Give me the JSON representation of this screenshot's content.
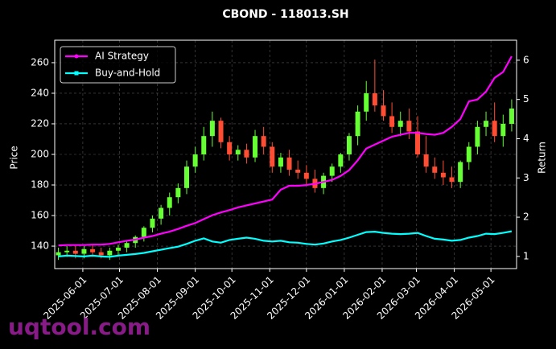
{
  "chart_data": {
    "type": "candlestick",
    "title": "CBOND - 118013.SH",
    "y_label": "Price",
    "y2_label": "Return",
    "watermark": "uqtool.com",
    "x": [
      "2025-05-12",
      "2025-05-19",
      "2025-05-26",
      "2025-06-02",
      "2025-06-09",
      "2025-06-16",
      "2025-06-23",
      "2025-06-30",
      "2025-07-07",
      "2025-07-14",
      "2025-07-21",
      "2025-07-28",
      "2025-08-04",
      "2025-08-11",
      "2025-08-18",
      "2025-08-25",
      "2025-09-01",
      "2025-09-08",
      "2025-09-15",
      "2025-09-22",
      "2025-09-29",
      "2025-10-06",
      "2025-10-13",
      "2025-10-20",
      "2025-10-27",
      "2025-11-03",
      "2025-11-10",
      "2025-11-17",
      "2025-11-24",
      "2025-12-01",
      "2025-12-08",
      "2025-12-15",
      "2025-12-22",
      "2025-12-29",
      "2026-01-05",
      "2026-01-12",
      "2026-01-19",
      "2026-01-26",
      "2026-02-02",
      "2026-02-09",
      "2026-02-16",
      "2026-02-23",
      "2026-03-02",
      "2026-03-09",
      "2026-03-16",
      "2026-03-23",
      "2026-03-30",
      "2026-04-06",
      "2026-04-13",
      "2026-04-20",
      "2026-04-27",
      "2026-05-04",
      "2026-05-11",
      "2026-05-18"
    ],
    "open": [
      134,
      136,
      137,
      135,
      138,
      136,
      134,
      137,
      139,
      142,
      146,
      152,
      158,
      165,
      172,
      178,
      192,
      200,
      212,
      222,
      208,
      200,
      203,
      198,
      212,
      205,
      192,
      198,
      190,
      188,
      184,
      178,
      186,
      192,
      200,
      212,
      228,
      240,
      232,
      225,
      218,
      222,
      215,
      200,
      192,
      188,
      185,
      182,
      195,
      205,
      218,
      222,
      212,
      220
    ],
    "high": [
      139,
      140,
      140,
      140,
      141,
      139,
      139,
      141,
      143,
      147,
      153,
      160,
      167,
      175,
      181,
      196,
      205,
      218,
      228,
      224,
      212,
      206,
      207,
      216,
      218,
      208,
      201,
      203,
      196,
      193,
      190,
      188,
      194,
      201,
      214,
      232,
      248,
      262,
      242,
      234,
      228,
      230,
      225,
      212,
      198,
      196,
      192,
      196,
      208,
      222,
      228,
      234,
      226,
      236
    ],
    "low": [
      131,
      133,
      132,
      132,
      133,
      132,
      131,
      134,
      136,
      139,
      143,
      149,
      154,
      160,
      168,
      174,
      188,
      196,
      205,
      204,
      196,
      196,
      194,
      195,
      200,
      188,
      188,
      186,
      184,
      180,
      175,
      174,
      182,
      188,
      196,
      206,
      222,
      228,
      222,
      214,
      212,
      210,
      198,
      188,
      184,
      180,
      178,
      178,
      190,
      200,
      212,
      208,
      205,
      215
    ],
    "close": [
      136,
      137,
      135,
      138,
      136,
      134,
      137,
      139,
      142,
      146,
      152,
      158,
      165,
      172,
      178,
      192,
      200,
      212,
      222,
      208,
      200,
      203,
      198,
      212,
      205,
      192,
      198,
      190,
      188,
      184,
      178,
      186,
      192,
      200,
      212,
      228,
      240,
      232,
      225,
      218,
      222,
      215,
      200,
      192,
      188,
      185,
      182,
      195,
      205,
      218,
      222,
      212,
      220,
      230
    ],
    "up_color": "#66ff33",
    "down_color": "#ff4d33",
    "series": [
      {
        "name": "AI Strategy",
        "color": "#ff00ff",
        "axis": "y2",
        "marker": "circle",
        "values": [
          1.28,
          1.29,
          1.29,
          1.29,
          1.3,
          1.3,
          1.32,
          1.36,
          1.4,
          1.43,
          1.48,
          1.52,
          1.58,
          1.63,
          1.7,
          1.78,
          1.85,
          1.95,
          2.05,
          2.12,
          2.18,
          2.25,
          2.3,
          2.35,
          2.4,
          2.45,
          2.7,
          2.8,
          2.8,
          2.82,
          2.85,
          2.9,
          2.95,
          3.05,
          3.2,
          3.45,
          3.75,
          3.85,
          3.95,
          4.05,
          4.1,
          4.15,
          4.15,
          4.12,
          4.1,
          4.15,
          4.3,
          4.5,
          4.95,
          5.0,
          5.2,
          5.55,
          5.7,
          6.1
        ]
      },
      {
        "name": "Buy-and-Hold",
        "color": "#00ffff",
        "axis": "y2",
        "marker": "square",
        "values": [
          1.0,
          1.02,
          1.01,
          1.0,
          1.02,
          1.0,
          0.99,
          1.02,
          1.04,
          1.06,
          1.09,
          1.13,
          1.17,
          1.21,
          1.25,
          1.32,
          1.4,
          1.46,
          1.38,
          1.35,
          1.42,
          1.45,
          1.48,
          1.45,
          1.4,
          1.38,
          1.4,
          1.36,
          1.35,
          1.32,
          1.3,
          1.33,
          1.38,
          1.42,
          1.48,
          1.55,
          1.62,
          1.63,
          1.6,
          1.58,
          1.57,
          1.58,
          1.6,
          1.52,
          1.45,
          1.43,
          1.4,
          1.42,
          1.48,
          1.52,
          1.58,
          1.57,
          1.6,
          1.64
        ]
      }
    ],
    "xlim": [
      "2025-05-09",
      "2026-05-22"
    ],
    "xticks": [
      "2025-06-01",
      "2025-07-01",
      "2025-08-01",
      "2025-09-01",
      "2025-10-01",
      "2025-11-01",
      "2025-12-01",
      "2026-01-01",
      "2026-02-01",
      "2026-03-01",
      "2026-04-01",
      "2026-05-01"
    ],
    "ylim": [
      125.3,
      274.7
    ],
    "yticks": [
      140,
      160,
      180,
      200,
      220,
      240,
      260
    ],
    "y2lim": [
      0.69,
      6.51
    ],
    "y2ticks": [
      1,
      2,
      3,
      4,
      5,
      6
    ],
    "grid": true,
    "legend": "upper left"
  }
}
